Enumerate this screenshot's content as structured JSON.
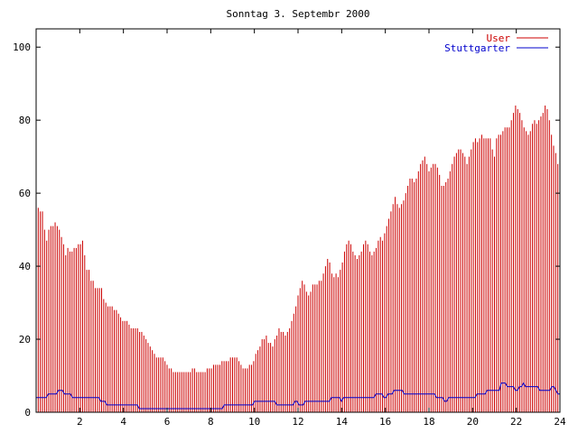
{
  "chart_data": {
    "type": "bar",
    "title": "Sonntag 3. Septembr 2000",
    "xlabel": "",
    "ylabel": "",
    "xlim": [
      0,
      24
    ],
    "ylim": [
      0,
      105
    ],
    "x_ticks": [
      "2",
      "4",
      "6",
      "8",
      "10",
      "12",
      "14",
      "16",
      "18",
      "20",
      "22",
      "24"
    ],
    "y_ticks": [
      "0",
      "20",
      "40",
      "60",
      "80",
      "100"
    ],
    "grid": false,
    "legend_position": "top-right",
    "sample_interval_hours": 0.0833,
    "series": [
      {
        "name": "User",
        "style": "impulses",
        "color": "#cc0000",
        "values": [
          55,
          56,
          55,
          55,
          50,
          47,
          50,
          51,
          51,
          52,
          51,
          50,
          48,
          46,
          43,
          45,
          44,
          44,
          45,
          45,
          46,
          46,
          47,
          43,
          39,
          39,
          36,
          36,
          34,
          34,
          34,
          34,
          31,
          30,
          29,
          29,
          29,
          28,
          28,
          27,
          26,
          25,
          25,
          25,
          24,
          23,
          23,
          23,
          23,
          22,
          22,
          21,
          20,
          19,
          18,
          17,
          16,
          15,
          15,
          15,
          15,
          14,
          13,
          12,
          12,
          11,
          11,
          11,
          11,
          11,
          11,
          11,
          11,
          11,
          12,
          12,
          11,
          11,
          11,
          11,
          11,
          12,
          12,
          12,
          13,
          13,
          13,
          13,
          14,
          14,
          14,
          14,
          15,
          15,
          15,
          15,
          14,
          13,
          12,
          12,
          12,
          13,
          13,
          14,
          16,
          17,
          18,
          20,
          20,
          21,
          19,
          19,
          18,
          20,
          21,
          23,
          22,
          22,
          21,
          22,
          23,
          25,
          27,
          29,
          32,
          34,
          36,
          35,
          33,
          32,
          33,
          35,
          35,
          35,
          36,
          36,
          38,
          40,
          42,
          41,
          38,
          37,
          38,
          37,
          39,
          41,
          44,
          46,
          47,
          46,
          44,
          43,
          42,
          43,
          44,
          46,
          47,
          46,
          44,
          43,
          44,
          45,
          47,
          48,
          47,
          49,
          51,
          53,
          55,
          57,
          59,
          57,
          56,
          57,
          58,
          60,
          62,
          64,
          64,
          63,
          64,
          66,
          68,
          69,
          70,
          68,
          66,
          67,
          68,
          68,
          67,
          65,
          62,
          62,
          63,
          64,
          66,
          68,
          70,
          71,
          72,
          72,
          71,
          70,
          68,
          70,
          72,
          74,
          75,
          74,
          75,
          76,
          75,
          75,
          75,
          75,
          72,
          70,
          75,
          76,
          76,
          77,
          78,
          78,
          78,
          80,
          82,
          84,
          83,
          82,
          80,
          78,
          77,
          76,
          77,
          79,
          80,
          79,
          80,
          81,
          82,
          84,
          83,
          80,
          76,
          73,
          71,
          68,
          67
        ]
      },
      {
        "name": "Stuttgarter",
        "style": "line",
        "color": "#0000cc",
        "values": [
          4,
          4,
          4,
          4,
          4,
          4,
          5,
          5,
          5,
          5,
          5,
          6,
          6,
          6,
          5,
          5,
          5,
          5,
          4,
          4,
          4,
          4,
          4,
          4,
          4,
          4,
          4,
          4,
          4,
          4,
          4,
          4,
          3,
          3,
          3,
          2,
          2,
          2,
          2,
          2,
          2,
          2,
          2,
          2,
          2,
          2,
          2,
          2,
          2,
          2,
          2,
          1,
          1,
          1,
          1,
          1,
          1,
          1,
          1,
          1,
          1,
          1,
          1,
          1,
          1,
          1,
          1,
          1,
          1,
          1,
          1,
          1,
          1,
          1,
          1,
          1,
          1,
          1,
          1,
          1,
          1,
          1,
          1,
          1,
          1,
          1,
          1,
          1,
          1,
          1,
          1,
          1,
          1,
          2,
          2,
          2,
          2,
          2,
          2,
          2,
          2,
          2,
          2,
          2,
          2,
          2,
          2,
          2,
          3,
          3,
          3,
          3,
          3,
          3,
          3,
          3,
          3,
          3,
          3,
          2,
          2,
          2,
          2,
          2,
          2,
          2,
          2,
          2,
          3,
          3,
          2,
          2,
          2,
          3,
          3,
          3,
          3,
          3,
          3,
          3,
          3,
          3,
          3,
          3,
          3,
          3,
          4,
          4,
          4,
          4,
          4,
          3,
          4,
          4,
          4,
          4,
          4,
          4,
          4,
          4,
          4,
          4,
          4,
          4,
          4,
          4,
          4,
          4,
          5,
          5,
          5,
          5,
          4,
          4,
          5,
          5,
          5,
          6,
          6,
          6,
          6,
          6,
          5,
          5,
          5,
          5,
          5,
          5,
          5,
          5,
          5,
          5,
          5,
          5,
          5,
          5,
          5,
          5,
          4,
          4,
          4,
          4,
          3,
          3,
          4,
          4,
          4,
          4,
          4,
          4,
          4,
          4,
          4,
          4,
          4,
          4,
          4,
          4,
          5,
          5,
          5,
          5,
          5,
          6,
          6,
          6,
          6,
          6,
          6,
          6,
          8,
          8,
          8,
          7,
          7,
          7,
          7,
          6,
          6,
          7,
          7,
          8,
          7,
          7,
          7,
          7,
          7,
          7,
          7,
          6,
          6,
          6,
          6,
          6,
          6,
          7,
          7,
          6,
          5,
          5
        ]
      }
    ]
  }
}
